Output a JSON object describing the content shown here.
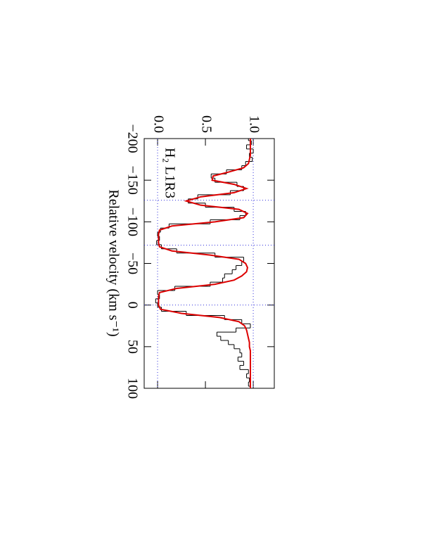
{
  "chart_data": {
    "type": "line",
    "x_label": "Relative velocity (km s⁻¹)",
    "annotation": "H₂ L1R3",
    "xlim": [
      -200,
      100
    ],
    "ylim": [
      -0.14,
      1.22
    ],
    "xticks": [
      {
        "value": -200,
        "label": "−200"
      },
      {
        "value": -150,
        "label": "−150"
      },
      {
        "value": -100,
        "label": "−100"
      },
      {
        "value": -50,
        "label": "−50"
      },
      0,
      50,
      100
    ],
    "yticks": [
      {
        "value": 0,
        "label": "0.0"
      },
      {
        "value": 0.5,
        "label": "0.5"
      },
      {
        "value": 1,
        "label": "1.0"
      }
    ],
    "hlines": [
      0,
      1
    ],
    "vlines": [
      -126,
      -72,
      0
    ],
    "rotated": true,
    "x": [
      -200,
      -195,
      -190,
      -185,
      -180,
      -175,
      -170,
      -165,
      -160,
      -155,
      -150,
      -145,
      -140,
      -135,
      -130,
      -125,
      -120,
      -115,
      -110,
      -105,
      -100,
      -95,
      -90,
      -85,
      -80,
      -75,
      -70,
      -65,
      -60,
      -55,
      -50,
      -45,
      -40,
      -35,
      -30,
      -25,
      -20,
      -15,
      -10,
      -5,
      0,
      5,
      10,
      15,
      20,
      25,
      30,
      35,
      40,
      45,
      50,
      55,
      60,
      65,
      70,
      75,
      80,
      85,
      90,
      95,
      100
    ],
    "series": [
      {
        "color": "#000000",
        "style": "step",
        "values": [
          0.95,
          0.98,
          0.93,
          1.0,
          0.96,
          0.99,
          0.92,
          0.88,
          0.72,
          0.56,
          0.6,
          0.83,
          0.9,
          0.76,
          0.42,
          0.32,
          0.5,
          0.8,
          0.92,
          0.86,
          0.55,
          0.12,
          0.03,
          0.0,
          0.02,
          -0.01,
          0.04,
          0.2,
          0.6,
          0.9,
          0.88,
          0.82,
          0.78,
          0.7,
          0.68,
          0.55,
          0.18,
          0.0,
          0.02,
          -0.02,
          0.0,
          0.04,
          0.3,
          0.7,
          0.88,
          0.97,
          0.82,
          0.62,
          0.66,
          0.74,
          0.8,
          0.86,
          0.88,
          0.84,
          0.9,
          0.86,
          0.95,
          0.93,
          0.96,
          0.95,
          0.97
        ]
      },
      {
        "color": "#dd0000",
        "style": "line",
        "values": [
          0.97,
          0.97,
          0.97,
          0.97,
          0.97,
          0.96,
          0.95,
          0.9,
          0.75,
          0.58,
          0.57,
          0.8,
          0.93,
          0.8,
          0.45,
          0.3,
          0.45,
          0.85,
          0.94,
          0.9,
          0.6,
          0.15,
          0.02,
          0.01,
          0.01,
          0.01,
          0.02,
          0.15,
          0.55,
          0.85,
          0.92,
          0.94,
          0.93,
          0.88,
          0.8,
          0.6,
          0.2,
          0.02,
          0.01,
          0.01,
          0.01,
          0.03,
          0.25,
          0.65,
          0.85,
          0.91,
          0.93,
          0.94,
          0.95,
          0.96,
          0.96,
          0.97,
          0.97,
          0.97,
          0.97,
          0.97,
          0.97,
          0.97,
          0.97,
          0.97,
          0.97
        ]
      }
    ]
  }
}
